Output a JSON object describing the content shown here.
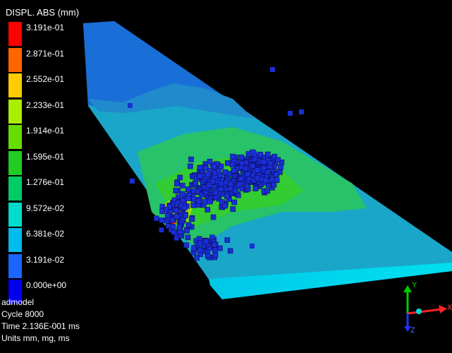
{
  "legend": {
    "title": "DISPL. ABS (mm)",
    "entries": [
      {
        "label": "3.191e-01",
        "color": "#ff0000"
      },
      {
        "label": "2.871e-01",
        "color": "#ff6600"
      },
      {
        "label": "2.552e-01",
        "color": "#ffcc00"
      },
      {
        "label": "2.233e-01",
        "color": "#aaee00"
      },
      {
        "label": "1.914e-01",
        "color": "#66dd00"
      },
      {
        "label": "1.595e-01",
        "color": "#22cc22"
      },
      {
        "label": "1.276e-01",
        "color": "#00cc66"
      },
      {
        "label": "9.572e-02",
        "color": "#00dccc"
      },
      {
        "label": "6.381e-02",
        "color": "#00bbee"
      },
      {
        "label": "3.191e-02",
        "color": "#1a66ff"
      },
      {
        "label": "0.000e+00",
        "color": "#0000ee"
      }
    ]
  },
  "info": {
    "model": "admodel",
    "cycle": "Cycle 8000",
    "time": "Time 2.136E-001 ms",
    "units": "Units mm, mg, ms"
  },
  "triad": {
    "x_label": "X",
    "y_label": "Y",
    "z_label": "Z"
  }
}
